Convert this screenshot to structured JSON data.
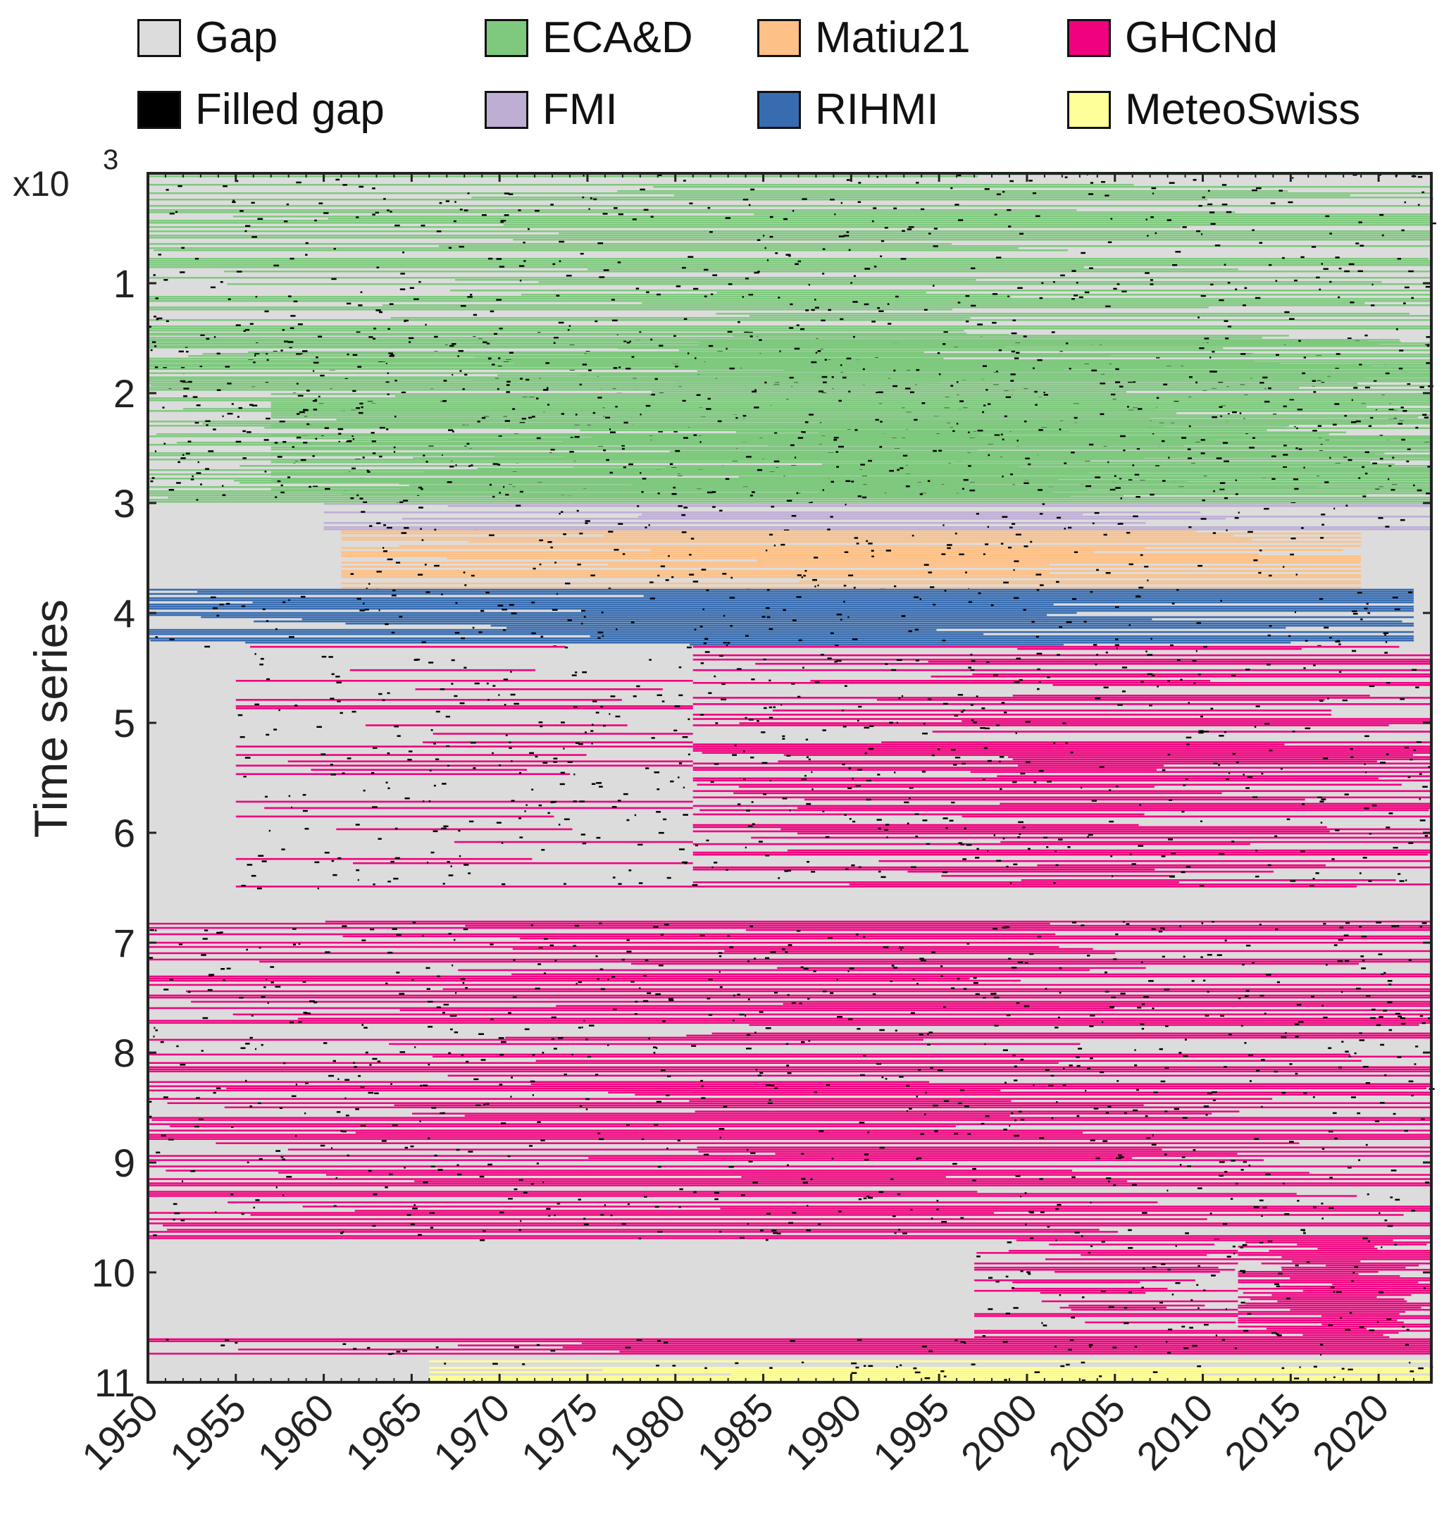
{
  "chart_data": {
    "type": "heatmap",
    "ylabel": "Time series",
    "y_exponent_label": "x10",
    "y_exponent_value": "3",
    "xlim": [
      1950,
      2023
    ],
    "ylim_thousands": [
      0,
      11
    ],
    "x_ticks": [
      1950,
      1955,
      1960,
      1965,
      1970,
      1975,
      1980,
      1985,
      1990,
      1995,
      2000,
      2005,
      2010,
      2015,
      2020
    ],
    "y_ticks": [
      1,
      2,
      3,
      4,
      5,
      6,
      7,
      8,
      9,
      10,
      11
    ],
    "legend": [
      {
        "name": "Gap",
        "color": "#dcdcdc"
      },
      {
        "name": "ECA&D",
        "color": "#7fc97f"
      },
      {
        "name": "Matiu21",
        "color": "#fdc086"
      },
      {
        "name": "GHCNd",
        "color": "#f0027f"
      },
      {
        "name": "Filled gap",
        "color": "#000000"
      },
      {
        "name": "FMI",
        "color": "#beaed4"
      },
      {
        "name": "RIHMI",
        "color": "#386cb0"
      },
      {
        "name": "MeteoSwiss",
        "color": "#ffff99"
      }
    ],
    "blocks": [
      {
        "source": "ECA&D",
        "y_from": 0.0,
        "y_to": 3.0,
        "x_from": 1950,
        "x_to": 2023,
        "density": 0.55
      },
      {
        "source": "ECA&D",
        "y_from": 1.45,
        "y_to": 2.0,
        "x_from": 1950,
        "x_to": 2023,
        "density": 0.95
      },
      {
        "source": "ECA&D",
        "y_from": 2.0,
        "y_to": 2.95,
        "x_from": 1957,
        "x_to": 2023,
        "density": 0.8
      },
      {
        "source": "FMI",
        "y_from": 3.0,
        "y_to": 3.25,
        "x_from": 1960,
        "x_to": 2023,
        "density": 0.6
      },
      {
        "source": "Matiu21",
        "y_from": 3.25,
        "y_to": 3.78,
        "x_from": 1961,
        "x_to": 2019,
        "density": 0.7
      },
      {
        "source": "RIHMI",
        "y_from": 3.78,
        "y_to": 4.3,
        "x_from": 1950,
        "x_to": 2022,
        "density": 0.95
      },
      {
        "source": "GHCNd",
        "y_from": 4.3,
        "y_to": 6.5,
        "x_from": 1981,
        "x_to": 2023,
        "density": 0.5
      },
      {
        "source": "GHCNd",
        "y_from": 4.3,
        "y_to": 6.5,
        "x_from": 1955,
        "x_to": 1981,
        "density": 0.12
      },
      {
        "source": "GHCNd",
        "y_from": 6.8,
        "y_to": 9.7,
        "x_from": 1950,
        "x_to": 2023,
        "density": 0.55
      },
      {
        "source": "GHCNd",
        "y_from": 9.7,
        "y_to": 10.6,
        "x_from": 2012,
        "x_to": 2023,
        "density": 0.95
      },
      {
        "source": "GHCNd",
        "y_from": 9.7,
        "y_to": 10.6,
        "x_from": 1997,
        "x_to": 2012,
        "density": 0.35
      },
      {
        "source": "GHCNd",
        "y_from": 10.6,
        "y_to": 10.75,
        "x_from": 1950,
        "x_to": 2023,
        "density": 0.8
      },
      {
        "source": "MeteoSwiss",
        "y_from": 10.8,
        "y_to": 11.0,
        "x_from": 1966,
        "x_to": 2023,
        "density": 0.7
      }
    ]
  }
}
